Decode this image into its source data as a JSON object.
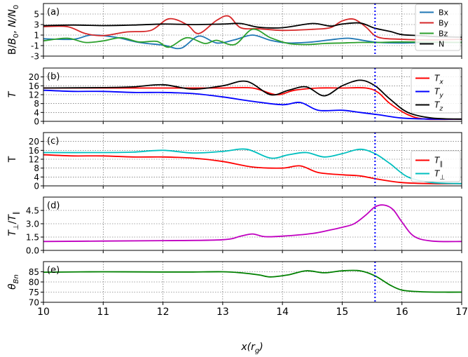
{
  "chart_data": [
    {
      "panel": "(a)",
      "type": "line",
      "ylabel": "B/B₀, N/N₀",
      "ylim": [
        -3,
        7
      ],
      "yticks": [
        -3,
        -1,
        1,
        3,
        5
      ],
      "xlim": [
        10,
        17
      ],
      "grid": true,
      "legend": "top-right",
      "legend_entries": [
        "Bx",
        "By",
        "Bz",
        "N"
      ],
      "marker_line_x": 15.55,
      "series": [
        {
          "name": "Bx",
          "color": "#1f77b4",
          "x": [
            10,
            10.5,
            10.8,
            11.2,
            11.6,
            12.0,
            12.3,
            12.6,
            12.9,
            13.2,
            13.5,
            13.8,
            14.1,
            14.5,
            14.8,
            15.1,
            15.4,
            15.6,
            16,
            16.5,
            17
          ],
          "values": [
            0.3,
            0.2,
            1.0,
            0.6,
            -0.4,
            -0.9,
            -1.5,
            0.8,
            -0.5,
            0.1,
            1.0,
            0.0,
            -0.5,
            -0.3,
            0.1,
            0.4,
            -0.1,
            -0.4,
            -0.5,
            -0.4,
            -0.4
          ]
        },
        {
          "name": "By",
          "color": "#d62728",
          "x": [
            10,
            10.4,
            10.7,
            11.0,
            11.4,
            11.8,
            12.1,
            12.4,
            12.6,
            12.9,
            13.1,
            13.3,
            13.6,
            14.0,
            14.5,
            14.8,
            15.0,
            15.2,
            15.4,
            15.6,
            16,
            16.5,
            17
          ],
          "values": [
            2.6,
            2.6,
            1.3,
            0.9,
            1.6,
            1.9,
            4.1,
            3.0,
            1.3,
            3.8,
            4.6,
            2.4,
            2.2,
            1.9,
            2.1,
            2.4,
            3.7,
            4.0,
            2.5,
            0.6,
            0.2,
            0.1,
            0.2
          ]
        },
        {
          "name": "Bz",
          "color": "#2ca02c",
          "x": [
            10,
            10.4,
            10.7,
            11.0,
            11.3,
            11.6,
            11.9,
            12.1,
            12.4,
            12.7,
            12.9,
            13.2,
            13.5,
            13.8,
            14.1,
            14.4,
            14.7,
            15.0,
            15.3,
            15.6,
            16,
            17
          ],
          "values": [
            -0.1,
            0.4,
            -0.4,
            -0.1,
            0.5,
            -0.3,
            -0.2,
            -1.3,
            0.5,
            -0.6,
            0.0,
            -0.8,
            2.1,
            0.5,
            -0.6,
            -0.8,
            -0.6,
            -0.5,
            -0.4,
            -0.4,
            -0.3,
            -0.4
          ]
        },
        {
          "name": "N",
          "color": "#000000",
          "x": [
            10,
            10.5,
            11,
            11.5,
            12,
            12.5,
            13,
            13.3,
            13.6,
            14,
            14.5,
            14.8,
            15.0,
            15.3,
            15.55,
            15.8,
            16,
            16.3,
            16.6,
            17
          ],
          "values": [
            2.8,
            2.9,
            2.8,
            2.9,
            3.1,
            3.0,
            3.1,
            3.2,
            2.5,
            2.4,
            3.2,
            2.7,
            3.1,
            3.3,
            2.3,
            1.7,
            1.1,
            0.9,
            0.7,
            0.6
          ]
        }
      ]
    },
    {
      "panel": "(b)",
      "type": "line",
      "ylabel": "T",
      "ylim": [
        0,
        24
      ],
      "yticks": [
        0,
        4,
        8,
        12,
        16,
        20
      ],
      "xlim": [
        10,
        17
      ],
      "grid": true,
      "legend": "top-right",
      "legend_entries": [
        "T_x",
        "T_y",
        "T_z"
      ],
      "marker_line_x": 15.55,
      "series": [
        {
          "name": "T_x",
          "color": "#ff0000",
          "x": [
            10,
            11,
            12,
            12.5,
            13,
            13.5,
            13.9,
            14.2,
            14.6,
            15,
            15.4,
            15.6,
            15.8,
            16.1,
            16.4,
            17
          ],
          "values": [
            15,
            15,
            15,
            15,
            15,
            15,
            12,
            14,
            15,
            15,
            15,
            13,
            8,
            3,
            1,
            1
          ]
        },
        {
          "name": "T_y",
          "color": "#0000ff",
          "x": [
            10,
            10.5,
            11,
            11.5,
            12,
            12.5,
            13,
            13.5,
            14,
            14.3,
            14.6,
            15,
            15.3,
            15.6,
            16,
            16.5,
            17
          ],
          "values": [
            14,
            13.5,
            13.5,
            13,
            13,
            12.5,
            11,
            9,
            7.5,
            8.5,
            5,
            5,
            4,
            3,
            1.5,
            1,
            1
          ]
        },
        {
          "name": "T_z",
          "color": "#000000",
          "x": [
            10,
            11,
            11.5,
            12,
            12.5,
            13,
            13.4,
            13.8,
            14.1,
            14.4,
            14.7,
            15.0,
            15.3,
            15.55,
            15.8,
            16.1,
            16.5,
            17
          ],
          "values": [
            15,
            15.2,
            15.5,
            16.5,
            14.5,
            16.0,
            18.0,
            12.0,
            14.0,
            15.5,
            11.5,
            16.0,
            18.5,
            16.0,
            10,
            4,
            1.5,
            1
          ]
        }
      ]
    },
    {
      "panel": "(c)",
      "type": "line",
      "ylabel": "T",
      "ylim": [
        0,
        24
      ],
      "yticks": [
        0,
        4,
        8,
        12,
        16,
        20
      ],
      "xlim": [
        10,
        17
      ],
      "grid": true,
      "legend": "center-right",
      "legend_entries": [
        "T_∥",
        "T_⊥"
      ],
      "marker_line_x": 15.55,
      "series": [
        {
          "name": "T_∥",
          "color": "#ff0000",
          "x": [
            10,
            10.5,
            11,
            11.5,
            12,
            12.5,
            13,
            13.5,
            14,
            14.3,
            14.6,
            15,
            15.3,
            15.6,
            16,
            16.5,
            17
          ],
          "values": [
            14,
            13.5,
            13.5,
            13,
            13,
            12.5,
            11,
            8.5,
            8,
            9,
            6,
            5,
            4.5,
            3,
            1.5,
            1,
            1
          ]
        },
        {
          "name": "T_⊥",
          "color": "#00bfbf",
          "x": [
            10,
            11,
            11.5,
            12,
            12.5,
            13,
            13.4,
            13.8,
            14.1,
            14.4,
            14.7,
            15.0,
            15.3,
            15.55,
            15.8,
            16.1,
            16.5,
            17
          ],
          "values": [
            15,
            15,
            15.2,
            16,
            14.8,
            15.5,
            16.5,
            12.5,
            14,
            15,
            13,
            14.5,
            16.5,
            14.5,
            10,
            4,
            1.5,
            1
          ]
        }
      ]
    },
    {
      "panel": "(d)",
      "type": "line",
      "ylabel": "T⊥/T∥",
      "ylim": [
        0,
        6
      ],
      "yticks": [
        0.0,
        1.5,
        3.0,
        4.5
      ],
      "xlim": [
        10,
        17
      ],
      "grid": true,
      "marker_line_x": 15.55,
      "series": [
        {
          "name": "T⊥/T∥",
          "color": "#c000c0",
          "x": [
            10,
            11,
            12,
            13,
            13.3,
            13.5,
            13.7,
            14,
            14.5,
            14.8,
            15.0,
            15.2,
            15.4,
            15.55,
            15.7,
            15.85,
            16.0,
            16.2,
            16.5,
            17
          ],
          "values": [
            1.0,
            1.05,
            1.1,
            1.2,
            1.6,
            1.85,
            1.55,
            1.6,
            1.9,
            2.3,
            2.6,
            3.0,
            4.0,
            4.9,
            5.1,
            4.6,
            3.2,
            1.6,
            1.05,
            1.0
          ]
        }
      ]
    },
    {
      "panel": "(e)",
      "type": "line",
      "ylabel": "θ_Bn",
      "xlabel": "x(r_g)",
      "ylim": [
        70,
        90
      ],
      "yticks": [
        70,
        75,
        80,
        85
      ],
      "xlim": [
        10,
        17
      ],
      "xticks": [
        10,
        11,
        12,
        13,
        14,
        15,
        16,
        17
      ],
      "grid": true,
      "marker_line_x": 15.55,
      "series": [
        {
          "name": "θ_Bn",
          "color": "#008000",
          "x": [
            10,
            11,
            12,
            12.5,
            13,
            13.3,
            13.6,
            13.8,
            14.1,
            14.4,
            14.7,
            15.0,
            15.3,
            15.55,
            15.8,
            16.0,
            16.3,
            16.6,
            17
          ],
          "values": [
            84.8,
            85.0,
            84.9,
            84.9,
            85.0,
            84.5,
            83.5,
            82.5,
            83.5,
            85.5,
            84.5,
            85.5,
            85.5,
            83.0,
            78.5,
            76.0,
            75.2,
            75.0,
            75.0
          ]
        }
      ]
    }
  ]
}
